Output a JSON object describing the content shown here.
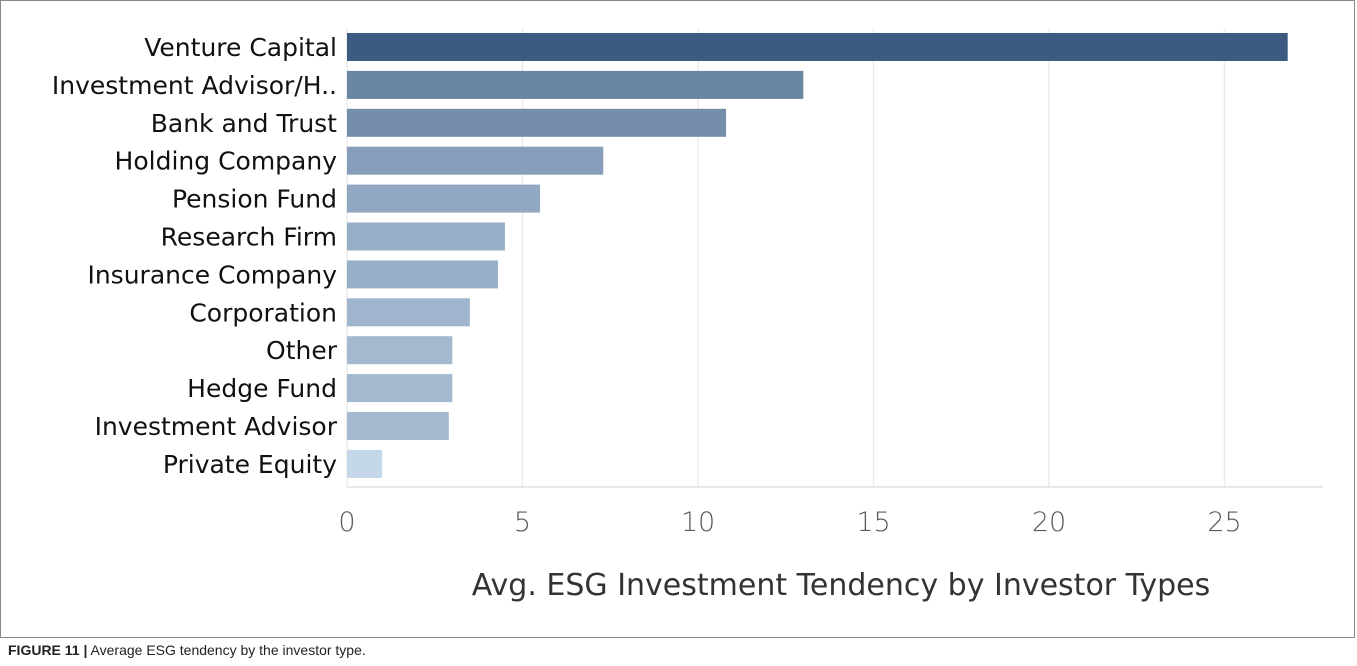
{
  "caption": {
    "figure_number": "FIGURE 11",
    "separator": "|",
    "text": "Average ESG tendency by the investor type."
  },
  "colors": {
    "bar_dark": "#3d5a80",
    "bar_light": "#c4d8ea",
    "grid": "#ebebeb",
    "axis": "#d0d0d0"
  },
  "chart_data": {
    "type": "bar",
    "orientation": "horizontal",
    "categories": [
      "Venture Capital",
      "Investment Advisor/H..",
      "Bank and Trust",
      "Holding Company",
      "Pension Fund",
      "Research Firm",
      "Insurance Company",
      "Corporation",
      "Other",
      "Hedge Fund",
      "Investment Advisor",
      "Private Equity"
    ],
    "values": [
      26.8,
      13.0,
      10.8,
      7.3,
      5.5,
      4.5,
      4.3,
      3.5,
      3.0,
      3.0,
      2.9,
      1.0
    ],
    "xticks": [
      0,
      5,
      10,
      15,
      20,
      25
    ],
    "xlim": [
      0,
      28
    ],
    "title": "",
    "xlabel": "Avg. ESG Investment Tendency by Investor Types",
    "ylabel": "",
    "grid": "vertical",
    "legend": "none"
  }
}
